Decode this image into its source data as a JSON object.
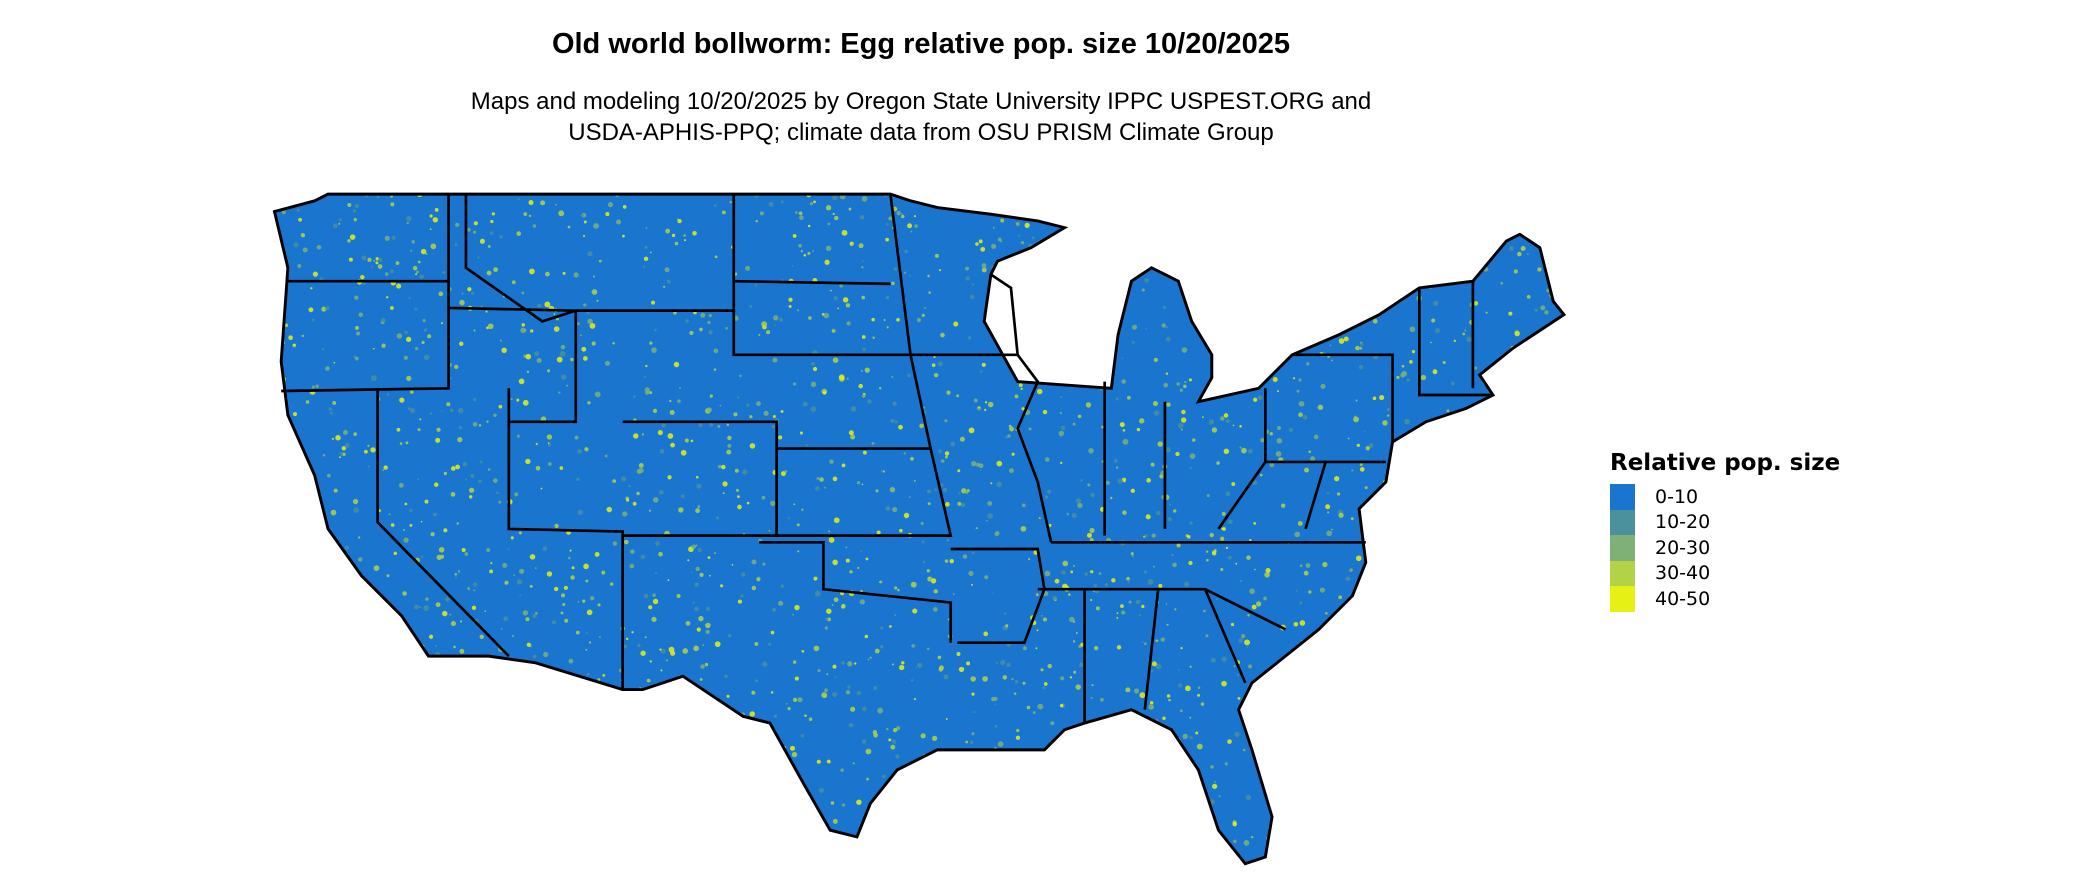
{
  "title": "Old world bollworm: Egg relative pop. size 10/20/2025",
  "subtitle_lines": [
    "Maps and modeling 10/20/2025 by Oregon State University IPPC USPEST.ORG and",
    "USDA-APHIS-PPQ; climate data from OSU PRISM Climate Group"
  ],
  "map": {
    "region": "Contiguous United States",
    "background_class_color": "#1a75cf",
    "hotspot_color": "#e6f014"
  },
  "legend": {
    "title": "Relative pop. size",
    "items": [
      {
        "label": "0-10",
        "color": "#1a75cf"
      },
      {
        "label": "10-20",
        "color": "#4a919b"
      },
      {
        "label": "20-30",
        "color": "#7eb077"
      },
      {
        "label": "30-40",
        "color": "#b3d246"
      },
      {
        "label": "40-50",
        "color": "#e6f014"
      }
    ]
  }
}
